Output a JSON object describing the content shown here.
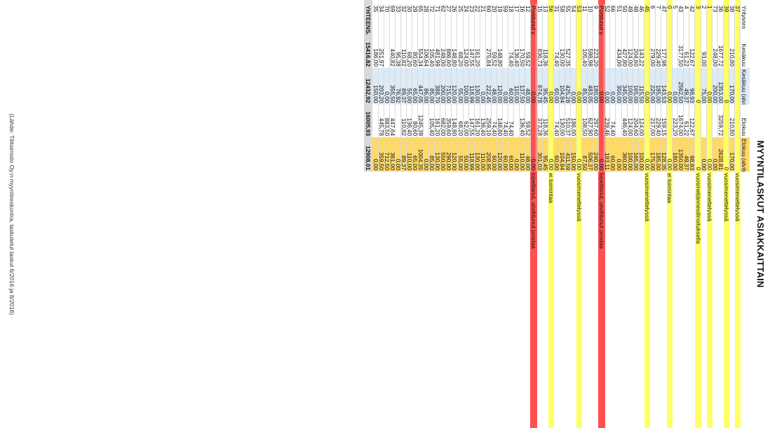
{
  "title": "MYYNTILASKUT ASIAKKAITTAIN",
  "source": "(Lähde: Tilitoimisto Oy:n myyntireskontra, laskutetut laskut 6/2016 ja 8/2016)",
  "colors": {
    "yellow": "#ffff66",
    "red": "#ff5050",
    "blue_light": "#ddebf7",
    "orange_light": "#ffd966",
    "total_grey": "#d9d9d9"
  },
  "headers": [
    "Yritysnro",
    "Kesäkuu",
    "Kesäkuu (alviton)",
    "Elokuu",
    "Elokuu (alviton)",
    ""
  ],
  "rows": [
    {
      "c": [
        "37",
        "",
        "",
        "",
        "",
        "vuosimenettelyssä"
      ],
      "hl": "yellow"
    },
    {
      "c": [
        "38",
        "210,80",
        "170,00",
        "210,80",
        "170,00",
        ""
      ],
      "hl": ""
    },
    {
      "c": [
        "39",
        "",
        "0",
        "",
        "0",
        "vuosimenettelyssä"
      ],
      "hl": "yellow"
    },
    {
      "c": [
        "36",
        "1677,72",
        "1353,00",
        "3259,72",
        "2628,81",
        ""
      ],
      "hl": ""
    },
    {
      "c": [
        "73",
        "248,00",
        "200,00",
        "",
        "0,00",
        ""
      ],
      "hl": ""
    },
    {
      "c": [
        "1",
        "",
        "0,00",
        "",
        "0,00",
        "vuosimenettelyssä"
      ],
      "hl": "yellow"
    },
    {
      "c": [
        "2",
        "93,00",
        "75,00",
        "",
        "0,00",
        ""
      ],
      "hl": ""
    },
    {
      "c": [
        "3",
        "",
        "0",
        "",
        "0",
        "vuosineljännesilmoituksella"
      ],
      "hl": "yellow"
    },
    {
      "c": [
        "42",
        "122,67",
        "98,93",
        "122,67",
        "98,93",
        ""
      ],
      "hl": ""
    },
    {
      "c": [
        "4",
        "61,22",
        "49,37",
        "61,22",
        "49,37",
        ""
      ],
      "hl": ""
    },
    {
      "c": [
        "43",
        "3177,50",
        "2562,50",
        "1674,00",
        "1350,00",
        ""
      ],
      "hl": ""
    },
    {
      "c": [
        "5",
        "",
        "0,00",
        "223,20",
        "180,00",
        ""
      ],
      "hl": ""
    },
    {
      "c": [
        "0",
        "",
        "0,00",
        "",
        "0,00",
        "ei toimintaa"
      ],
      "hl": "yellow"
    },
    {
      "c": [
        "47",
        "177,98",
        "143,53",
        "159,15",
        "128,35",
        ""
      ],
      "hl": ""
    },
    {
      "c": [
        "7",
        "229,40",
        "185,00",
        "229,40",
        "185,00",
        ""
      ],
      "hl": ""
    },
    {
      "c": [
        "6",
        "279,00",
        "225,00",
        "217,00",
        "175,00",
        ""
      ],
      "hl": ""
    },
    {
      "c": [
        "45",
        "",
        "0,00",
        "",
        "0,00",
        "vuosimenettelyssä"
      ],
      "hl": "yellow"
    },
    {
      "c": [
        "46",
        "143,22",
        "115,50",
        "124,00",
        "100,00",
        ""
      ],
      "hl": ""
    },
    {
      "c": [
        "48",
        "204,60",
        "165,00",
        "204,60",
        "165,00",
        ""
      ],
      "hl": ""
    },
    {
      "c": [
        "49",
        "124,00",
        "100,00",
        "124,00",
        "100,00",
        ""
      ],
      "hl": ""
    },
    {
      "c": [
        "50",
        "427,80",
        "345,00",
        "446,40",
        "360,00",
        ""
      ],
      "hl": ""
    },
    {
      "c": [
        "51",
        "434,00",
        "350,00",
        "",
        "0,00",
        ""
      ],
      "hl": ""
    },
    {
      "c": [
        "66",
        "",
        "0,00",
        "74,40",
        "60,00",
        ""
      ],
      "hl": ""
    },
    {
      "c": [
        "52",
        "",
        "0,00",
        "239,46",
        "193,11",
        ""
      ],
      "hl": ""
    },
    {
      "c": [
        "Poistunut yritys 1",
        "",
        "0,00",
        "",
        "0,00",
        "lopettanut, unohtunut poistaa"
      ],
      "hl": "red"
    },
    {
      "c": [
        "9",
        "223,20",
        "180,00",
        "297,60",
        "240,00",
        ""
      ],
      "hl": ""
    },
    {
      "c": [
        "10",
        "598,98",
        "483,05",
        "627,90",
        "506,37",
        ""
      ],
      "hl": ""
    },
    {
      "c": [
        "11",
        "105,40",
        "85,00",
        "108,50",
        "87,50",
        ""
      ],
      "hl": ""
    },
    {
      "c": [
        "53",
        "",
        "0,00",
        "",
        "0,00",
        "vuosimenettelyssä"
      ],
      "hl": "yellow"
    },
    {
      "c": [
        "54",
        "",
        "0,00",
        "186,00",
        "150,00",
        ""
      ],
      "hl": ""
    },
    {
      "c": [
        "55",
        "527,35",
        "425,28",
        "510,37",
        "411,59",
        ""
      ],
      "hl": ""
    },
    {
      "c": [
        "58",
        "130,00",
        "104,84",
        "130,00",
        "104,84",
        ""
      ],
      "hl": ""
    },
    {
      "c": [
        "31",
        "74,40",
        "60,00",
        "74,40",
        "60,00",
        ""
      ],
      "hl": ""
    },
    {
      "c": [
        "56",
        "",
        "0,00",
        "",
        "0,00",
        "ei toimintaa"
      ],
      "hl": "yellow"
    },
    {
      "c": [
        "13",
        "118,36",
        "95,45",
        "118,36",
        "95,45",
        ""
      ],
      "hl": ""
    },
    {
      "c": [
        "15",
        "836,73",
        "674,78",
        "373,28",
        "301,03",
        ""
      ],
      "hl": ""
    },
    {
      "c": [
        "Poistunut yritys 2",
        "",
        "0,00",
        "",
        "0,00",
        "lopettanut, unohtunut poistaa"
      ],
      "hl": "red"
    },
    {
      "c": [
        "12",
        "59,52",
        "48,00",
        "59,52",
        "48,00",
        ""
      ],
      "hl": ""
    },
    {
      "c": [
        "16",
        "170,50",
        "137,50",
        "136,40",
        "110,00",
        ""
      ],
      "hl": ""
    },
    {
      "c": [
        "17",
        "136,40",
        "110,00",
        "",
        "0,00",
        ""
      ],
      "hl": ""
    },
    {
      "c": [
        "18",
        "74,40",
        "60,00",
        "74,40",
        "60,00",
        ""
      ],
      "hl": ""
    },
    {
      "c": [
        "59",
        "",
        "0,00",
        "74,40",
        "60,00",
        ""
      ],
      "hl": ""
    },
    {
      "c": [
        "19",
        "148,80",
        "120,00",
        "148,80",
        "120,00",
        ""
      ],
      "hl": ""
    },
    {
      "c": [
        "20",
        "59,52",
        "48,00",
        "74,40",
        "60,00",
        ""
      ],
      "hl": ""
    },
    {
      "c": [
        "60",
        "275,84",
        "222,45",
        "259,10",
        "208,95",
        ""
      ],
      "hl": ""
    },
    {
      "c": [
        "21",
        "",
        "0,00",
        "136,40",
        "110,00",
        ""
      ],
      "hl": ""
    },
    {
      "c": [
        "22",
        "161,20",
        "130,00",
        "161,20",
        "130,00",
        ""
      ],
      "hl": ""
    },
    {
      "c": [
        "23",
        "147,55",
        "118,99",
        "147,55",
        "118,99",
        ""
      ],
      "hl": ""
    },
    {
      "c": [
        "24",
        "124,00",
        "100,00",
        "62,00",
        "50,00",
        ""
      ],
      "hl": ""
    },
    {
      "c": [
        "25",
        "68,20",
        "55,00",
        "68,20",
        "55,00",
        ""
      ],
      "hl": ""
    },
    {
      "c": [
        "26",
        "148,80",
        "120,00",
        "148,80",
        "120,00",
        ""
      ],
      "hl": ""
    },
    {
      "c": [
        "27",
        "886,60",
        "715,00",
        "359,60",
        "290,00",
        ""
      ],
      "hl": ""
    },
    {
      "c": [
        "62",
        "248,00",
        "200,00",
        "682,00",
        "550,00",
        ""
      ],
      "hl": ""
    },
    {
      "c": [
        "71",
        "481,99",
        "388,70",
        "161,20",
        "130,00",
        ""
      ],
      "hl": ""
    },
    {
      "c": [
        "72",
        "105,40",
        "85,00",
        "105,40",
        "85,00",
        ""
      ],
      "hl": ""
    },
    {
      "c": [
        "28",
        "106,64",
        "86,00",
        "",
        "0,00",
        ""
      ],
      "hl": ""
    },
    {
      "c": [
        "65",
        "554,34",
        "447,05",
        "1245,39",
        "1004,35",
        ""
      ],
      "hl": ""
    },
    {
      "c": [
        "29",
        "80,60",
        "65,00",
        "80,60",
        "65,00",
        ""
      ],
      "hl": ""
    },
    {
      "c": [
        "30",
        "68,20",
        "55,00",
        "136,40",
        "110,00",
        ""
      ],
      "hl": ""
    },
    {
      "c": [
        "32",
        "110,82",
        "89,37",
        "110,82",
        "89,37",
        ""
      ],
      "hl": ""
    },
    {
      "c": [
        "33",
        "95,38",
        "76,92",
        "",
        "0,00",
        ""
      ],
      "hl": ""
    },
    {
      "c": [
        "69",
        "440,82",
        "355,50",
        "447,64",
        "361,00",
        ""
      ],
      "hl": ""
    },
    {
      "c": [
        "70",
        "",
        "0,00",
        "883,50",
        "712,50",
        ""
      ],
      "hl": ""
    },
    {
      "c": [
        "34",
        "251,97",
        "203,20",
        "445,78",
        "359,50",
        ""
      ],
      "hl": ""
    },
    {
      "c": [
        "35",
        "186,00",
        "150,00",
        "",
        "0,00",
        ""
      ],
      "hl": ""
    }
  ],
  "total": {
    "c": [
      "YHTEENSÄ",
      "15416,82",
      "12432,92",
      "16005,93",
      "12908,01",
      ""
    ]
  }
}
